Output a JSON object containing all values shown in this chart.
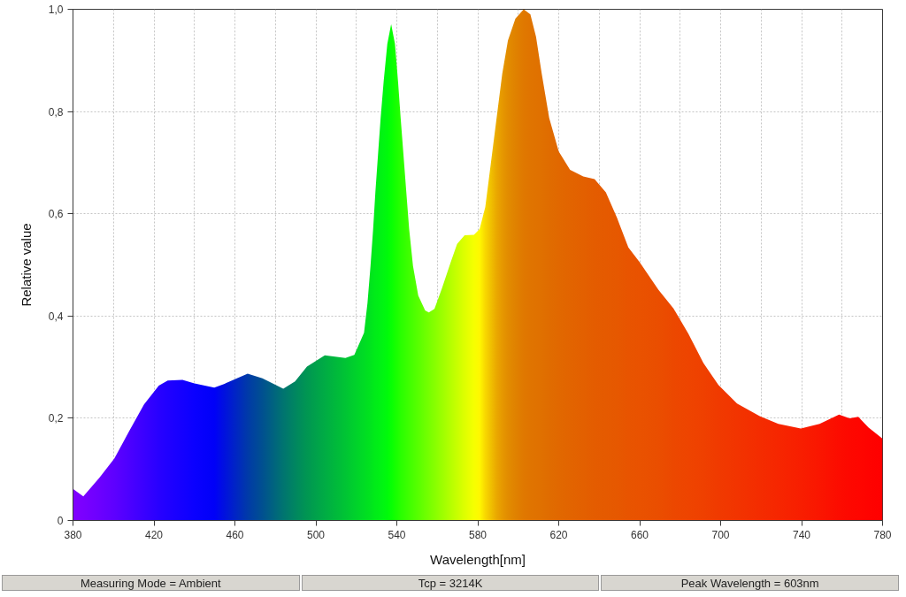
{
  "chart_data": {
    "type": "area",
    "xlabel": "Wavelength[nm]",
    "ylabel": "Relative value",
    "annotations": [
      "Measuring Mode = Ambient",
      "Tcp = 3214K",
      "Peak Wavelength = 603nm"
    ],
    "xlim": [
      380,
      780
    ],
    "ylim": [
      0,
      1
    ],
    "xticks": [
      380,
      {
        "value": 400,
        "label": null
      },
      420,
      {
        "value": 440,
        "label": null
      },
      460,
      {
        "value": 480,
        "label": null
      },
      500,
      {
        "value": 520,
        "label": null
      },
      540,
      {
        "value": 560,
        "label": null
      },
      580,
      {
        "value": 600,
        "label": null
      },
      620,
      {
        "value": 640,
        "label": null
      },
      660,
      {
        "value": 680,
        "label": null
      },
      700,
      {
        "value": 720,
        "label": null
      },
      740,
      {
        "value": 760,
        "label": null
      },
      780
    ],
    "yticks": [
      0,
      {
        "value": 0.2,
        "label": "0,2"
      },
      {
        "value": 0.4,
        "label": "0,4"
      },
      {
        "value": 0.6,
        "label": "0,6"
      },
      {
        "value": 0.8,
        "label": "0,8"
      },
      {
        "value": 1,
        "label": "1,0"
      }
    ],
    "grid": true,
    "x": [
      380,
      385.1,
      393.1,
      400.4,
      407.8,
      415.1,
      422.4,
      426.8,
      434.1,
      440,
      449.8,
      454.6,
      466.3,
      473.6,
      483.9,
      489.7,
      495.6,
      504.4,
      514.6,
      519,
      523.8,
      525.5,
      527,
      528.3,
      529.4,
      530.7,
      532,
      533.5,
      535.3,
      537.2,
      539.1,
      540.6,
      541.9,
      543.3,
      544.7,
      546.1,
      548,
      550.6,
      554,
      555.8,
      558.6,
      562.3,
      566,
      569.8,
      573.5,
      578.1,
      580.9,
      583.7,
      586.5,
      589.3,
      592.1,
      594.9,
      598.6,
      602.7,
      606,
      608.8,
      611.6,
      615.3,
      620,
      625.6,
      632.1,
      637.7,
      643.3,
      648.8,
      654.4,
      660,
      669.3,
      676.7,
      684.1,
      691.5,
      698.9,
      708.1,
      719.3,
      728.5,
      739.6,
      748.9,
      758.5,
      763.7,
      768,
      773,
      780
    ],
    "values": [
      0.062,
      0.047,
      0.084,
      0.121,
      0.175,
      0.227,
      0.264,
      0.274,
      0.275,
      0.268,
      0.26,
      0.267,
      0.287,
      0.278,
      0.258,
      0.272,
      0.301,
      0.323,
      0.318,
      0.324,
      0.367,
      0.425,
      0.498,
      0.57,
      0.642,
      0.715,
      0.787,
      0.859,
      0.932,
      0.971,
      0.932,
      0.859,
      0.787,
      0.715,
      0.642,
      0.57,
      0.498,
      0.44,
      0.411,
      0.407,
      0.414,
      0.454,
      0.498,
      0.541,
      0.558,
      0.559,
      0.57,
      0.613,
      0.7,
      0.787,
      0.874,
      0.939,
      0.982,
      1.0,
      0.99,
      0.946,
      0.874,
      0.787,
      0.722,
      0.686,
      0.673,
      0.668,
      0.642,
      0.592,
      0.534,
      0.505,
      0.451,
      0.415,
      0.365,
      0.308,
      0.265,
      0.229,
      0.204,
      0.189,
      0.18,
      0.189,
      0.207,
      0.2,
      0.203,
      0.182,
      0.16
    ],
    "colors": [
      "#8000ff",
      "#7a00ff",
      "#6c00ff",
      "#5e00ff",
      "#4c00ff",
      "#3a00ff",
      "#2800ff",
      "#2000ff",
      "#1400ff",
      "#0a00ff",
      "#0000f8",
      "#0010e0",
      "#003aa8",
      "#005090",
      "#007470",
      "#008660",
      "#009652",
      "#00ac44",
      "#00c434",
      "#00d02c",
      "#00dc24",
      "#00e020",
      "#00e41e",
      "#00e81a",
      "#00ec18",
      "#00ee16",
      "#00f214",
      "#00f610",
      "#00fa0a",
      "#06ff04",
      "#14ff00",
      "#1eff00",
      "#28ff00",
      "#30ff00",
      "#38ff00",
      "#40ff00",
      "#4aff00",
      "#58ff00",
      "#6cff00",
      "#76ff00",
      "#86ff00",
      "#9cff00",
      "#b2ff00",
      "#c8ff00",
      "#deff00",
      "#f6ff00",
      "#fff800",
      "#f8d800",
      "#f0c000",
      "#eaa800",
      "#e69800",
      "#e28c00",
      "#e08200",
      "#e07800",
      "#e07400",
      "#e07200",
      "#e07000",
      "#e06c00",
      "#e16800",
      "#e26400",
      "#e36000",
      "#e45c00",
      "#e55a00",
      "#e65800",
      "#e85400",
      "#e95200",
      "#ea4e00",
      "#ec4800",
      "#ee4400",
      "#ef4000",
      "#f03a00",
      "#f23400",
      "#f42c00",
      "#f62600",
      "#f81e00",
      "#fa1600",
      "#fc0c00",
      "#fd0800",
      "#fe0600",
      "#fe0300",
      "#ff0000"
    ]
  }
}
